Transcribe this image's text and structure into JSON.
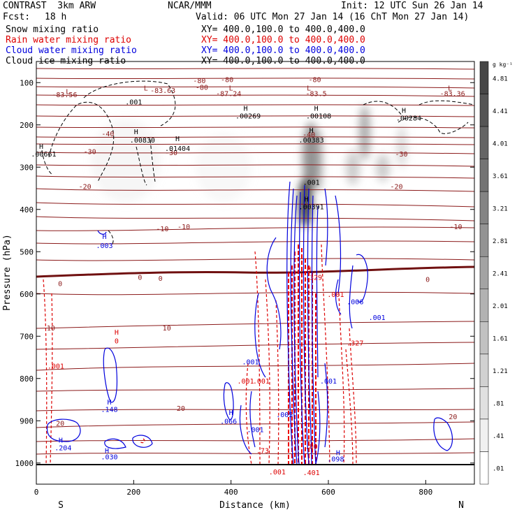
{
  "header": {
    "model": "CONTRAST  3km ARW",
    "center": "NCAR/MMM",
    "init": "Init: 12 UTC Sun 26 Jan 14",
    "fcst_label": "Fcst:",
    "fcst_value": "18 h",
    "valid": "Valid: 06 UTC Mon 27 Jan 14 (16 ChT Mon 27 Jan 14)"
  },
  "legend": [
    {
      "name": "Snow mixing ratio",
      "xy": "XY= 400.0,100.0 to 400.0,400.0",
      "color": "#000000"
    },
    {
      "name": "Rain water mixing ratio",
      "xy": "XY= 400.0,100.0 to 400.0,400.0",
      "color": "#dd0000"
    },
    {
      "name": "Cloud water mixing ratio",
      "xy": "XY= 400.0,100.0 to 400.0,400.0",
      "color": "#0000dd"
    },
    {
      "name": "Cloud ice mixing ratio",
      "xy": "XY= 400.0,100.0 to 400.0,400.0",
      "color": "#000000"
    }
  ],
  "chart_data": {
    "type": "cross-section",
    "xlabel": "Distance (km)",
    "ylabel": "Pressure (hPa)",
    "xlim": [
      0,
      900
    ],
    "ylim": [
      1050,
      50
    ],
    "x_ticks": [
      0,
      200,
      400,
      600,
      800
    ],
    "y_ticks": [
      100,
      200,
      300,
      400,
      500,
      600,
      700,
      800,
      900,
      1000
    ],
    "x_end_labels": {
      "left": "S",
      "right": "N"
    },
    "colorbar": {
      "unit": "g kg⁻¹",
      "labels": [
        "4.81",
        "4.41",
        "4.01",
        "3.61",
        "3.21",
        "2.81",
        "2.41",
        "2.01",
        "1.61",
        "1.21",
        ".81",
        ".41",
        ".01"
      ]
    },
    "temperature_labels": [
      {
        "text": "-80",
        "x": 335,
        "p": 95
      },
      {
        "text": "-80",
        "x": 392,
        "p": 92
      },
      {
        "text": "-80",
        "x": 572,
        "p": 92
      },
      {
        "text": "-80",
        "x": 340,
        "p": 110
      },
      {
        "text": "-40",
        "x": 147,
        "p": 220
      },
      {
        "text": "-40",
        "x": 560,
        "p": 222
      },
      {
        "text": "-30",
        "x": 110,
        "p": 262
      },
      {
        "text": "-30",
        "x": 277,
        "p": 265
      },
      {
        "text": "-30",
        "x": 750,
        "p": 268
      },
      {
        "text": "-20",
        "x": 100,
        "p": 345
      },
      {
        "text": "-20",
        "x": 740,
        "p": 345
      },
      {
        "text": "-10",
        "x": 259,
        "p": 445
      },
      {
        "text": "-10",
        "x": 303,
        "p": 440
      },
      {
        "text": "-10",
        "x": 862,
        "p": 440
      },
      {
        "text": "0",
        "x": 49,
        "p": 575
      },
      {
        "text": "0",
        "x": 213,
        "p": 560
      },
      {
        "text": "0",
        "x": 255,
        "p": 562
      },
      {
        "text": "0",
        "x": 804,
        "p": 565
      },
      {
        "text": "10",
        "x": 30,
        "p": 680
      },
      {
        "text": "10",
        "x": 268,
        "p": 680
      },
      {
        "text": "20",
        "x": 49,
        "p": 905
      },
      {
        "text": "20",
        "x": 297,
        "p": 870
      },
      {
        "text": "20",
        "x": 856,
        "p": 890
      }
    ],
    "extrema_labels": [
      {
        "text": "L",
        "x": 65,
        "p": 120,
        "color": "#8b1a1a"
      },
      {
        "text": "-83.56",
        "x": 58,
        "p": 128,
        "color": "#8b1a1a"
      },
      {
        "text": "L",
        "x": 225,
        "p": 112,
        "color": "#8b1a1a"
      },
      {
        "text": "-83.63",
        "x": 260,
        "p": 118,
        "color": "#8b1a1a"
      },
      {
        "text": "L",
        "x": 400,
        "p": 112,
        "color": "#8b1a1a"
      },
      {
        "text": "-87.24",
        "x": 395,
        "p": 125,
        "color": "#8b1a1a"
      },
      {
        "text": "L",
        "x": 560,
        "p": 112,
        "color": "#8b1a1a"
      },
      {
        "text": "-83.5",
        "x": 575,
        "p": 125,
        "color": "#8b1a1a"
      },
      {
        "text": "L",
        "x": 850,
        "p": 112,
        "color": "#8b1a1a"
      },
      {
        "text": "-83.36",
        "x": 855,
        "p": 125,
        "color": "#8b1a1a"
      },
      {
        "text": ".001",
        "x": 200,
        "p": 145,
        "color": "#000000"
      },
      {
        "text": "H",
        "x": 430,
        "p": 160,
        "color": "#000000"
      },
      {
        "text": ".00269",
        "x": 435,
        "p": 178,
        "color": "#000000"
      },
      {
        "text": "H",
        "x": 575,
        "p": 160,
        "color": "#000000"
      },
      {
        "text": ".00108",
        "x": 580,
        "p": 178,
        "color": "#000000"
      },
      {
        "text": "H",
        "x": 755,
        "p": 165,
        "color": "#000000"
      },
      {
        "text": ".00284",
        "x": 765,
        "p": 183,
        "color": "#000000"
      },
      {
        "text": "H",
        "x": 205,
        "p": 215,
        "color": "#000000"
      },
      {
        "text": ".00830",
        "x": 218,
        "p": 235,
        "color": "#000000"
      },
      {
        "text": "H",
        "x": 565,
        "p": 212,
        "color": "#000000"
      },
      {
        "text": ".00383",
        "x": 565,
        "p": 235,
        "color": "#000000"
      },
      {
        "text": "H",
        "x": 290,
        "p": 232,
        "color": "#000000"
      },
      {
        "text": ".01404",
        "x": 290,
        "p": 255,
        "color": "#000000"
      },
      {
        "text": "H",
        "x": 10,
        "p": 250,
        "color": "#000000"
      },
      {
        "text": ".00661",
        "x": 15,
        "p": 268,
        "color": "#000000"
      },
      {
        "text": ".001",
        "x": 565,
        "p": 335,
        "color": "#000000"
      },
      {
        "text": "H",
        "x": 555,
        "p": 375,
        "color": "#000000"
      },
      {
        "text": ".00391",
        "x": 565,
        "p": 393,
        "color": "#000000"
      },
      {
        "text": "H",
        "x": 140,
        "p": 463,
        "color": "#0000dd"
      },
      {
        "text": ".003",
        "x": 140,
        "p": 485,
        "color": "#0000dd"
      },
      {
        "text": "H",
        "x": 560,
        "p": 540,
        "color": "#dd0000"
      },
      {
        "text": ".329",
        "x": 570,
        "p": 560,
        "color": "#dd0000"
      },
      {
        "text": ".001",
        "x": 615,
        "p": 600,
        "color": "#dd0000"
      },
      {
        "text": ".006",
        "x": 655,
        "p": 618,
        "color": "#0000dd"
      },
      {
        "text": ".001",
        "x": 700,
        "p": 655,
        "color": "#0000dd"
      },
      {
        "text": "H",
        "x": 165,
        "p": 690,
        "color": "#dd0000"
      },
      {
        "text": "0",
        "x": 165,
        "p": 710,
        "color": "#dd0000"
      },
      {
        "text": ".001",
        "x": 40,
        "p": 770,
        "color": "#dd0000"
      },
      {
        "text": ".327",
        "x": 655,
        "p": 715,
        "color": "#dd0000"
      },
      {
        "text": ".001",
        "x": 440,
        "p": 760,
        "color": "#0000dd"
      },
      {
        "text": ".001",
        "x": 430,
        "p": 805,
        "color": "#dd0000"
      },
      {
        "text": ".001",
        "x": 462,
        "p": 805,
        "color": "#dd0000"
      },
      {
        "text": ".001",
        "x": 600,
        "p": 805,
        "color": "#0000dd"
      },
      {
        "text": "H",
        "x": 150,
        "p": 855,
        "color": "#0000dd"
      },
      {
        "text": ".148",
        "x": 150,
        "p": 872,
        "color": "#0000dd"
      },
      {
        "text": "H",
        "x": 400,
        "p": 880,
        "color": "#0000dd"
      },
      {
        "text": ".066",
        "x": 395,
        "p": 900,
        "color": "#0000dd"
      },
      {
        "text": ".005",
        "x": 510,
        "p": 885,
        "color": "#0000dd"
      },
      {
        "text": ".001",
        "x": 450,
        "p": 920,
        "color": "#0000dd"
      },
      {
        "text": "H",
        "x": 50,
        "p": 945,
        "color": "#0000dd"
      },
      {
        "text": ".204",
        "x": 55,
        "p": 963,
        "color": "#0000dd"
      },
      {
        "text": "H",
        "x": 145,
        "p": 970,
        "color": "#0000dd"
      },
      {
        "text": ".030",
        "x": 150,
        "p": 985,
        "color": "#0000dd"
      },
      {
        "text": ".73",
        "x": 465,
        "p": 970,
        "color": "#dd0000"
      },
      {
        "text": ".80",
        "x": 565,
        "p": 960,
        "color": "#dd0000"
      },
      {
        "text": "H",
        "x": 620,
        "p": 975,
        "color": "#0000dd"
      },
      {
        "text": ".098",
        "x": 615,
        "p": 990,
        "color": "#0000dd"
      },
      {
        "text": ".001",
        "x": 495,
        "p": 1020,
        "color": "#dd0000"
      },
      {
        "text": ".401",
        "x": 565,
        "p": 1022,
        "color": "#dd0000"
      }
    ]
  }
}
